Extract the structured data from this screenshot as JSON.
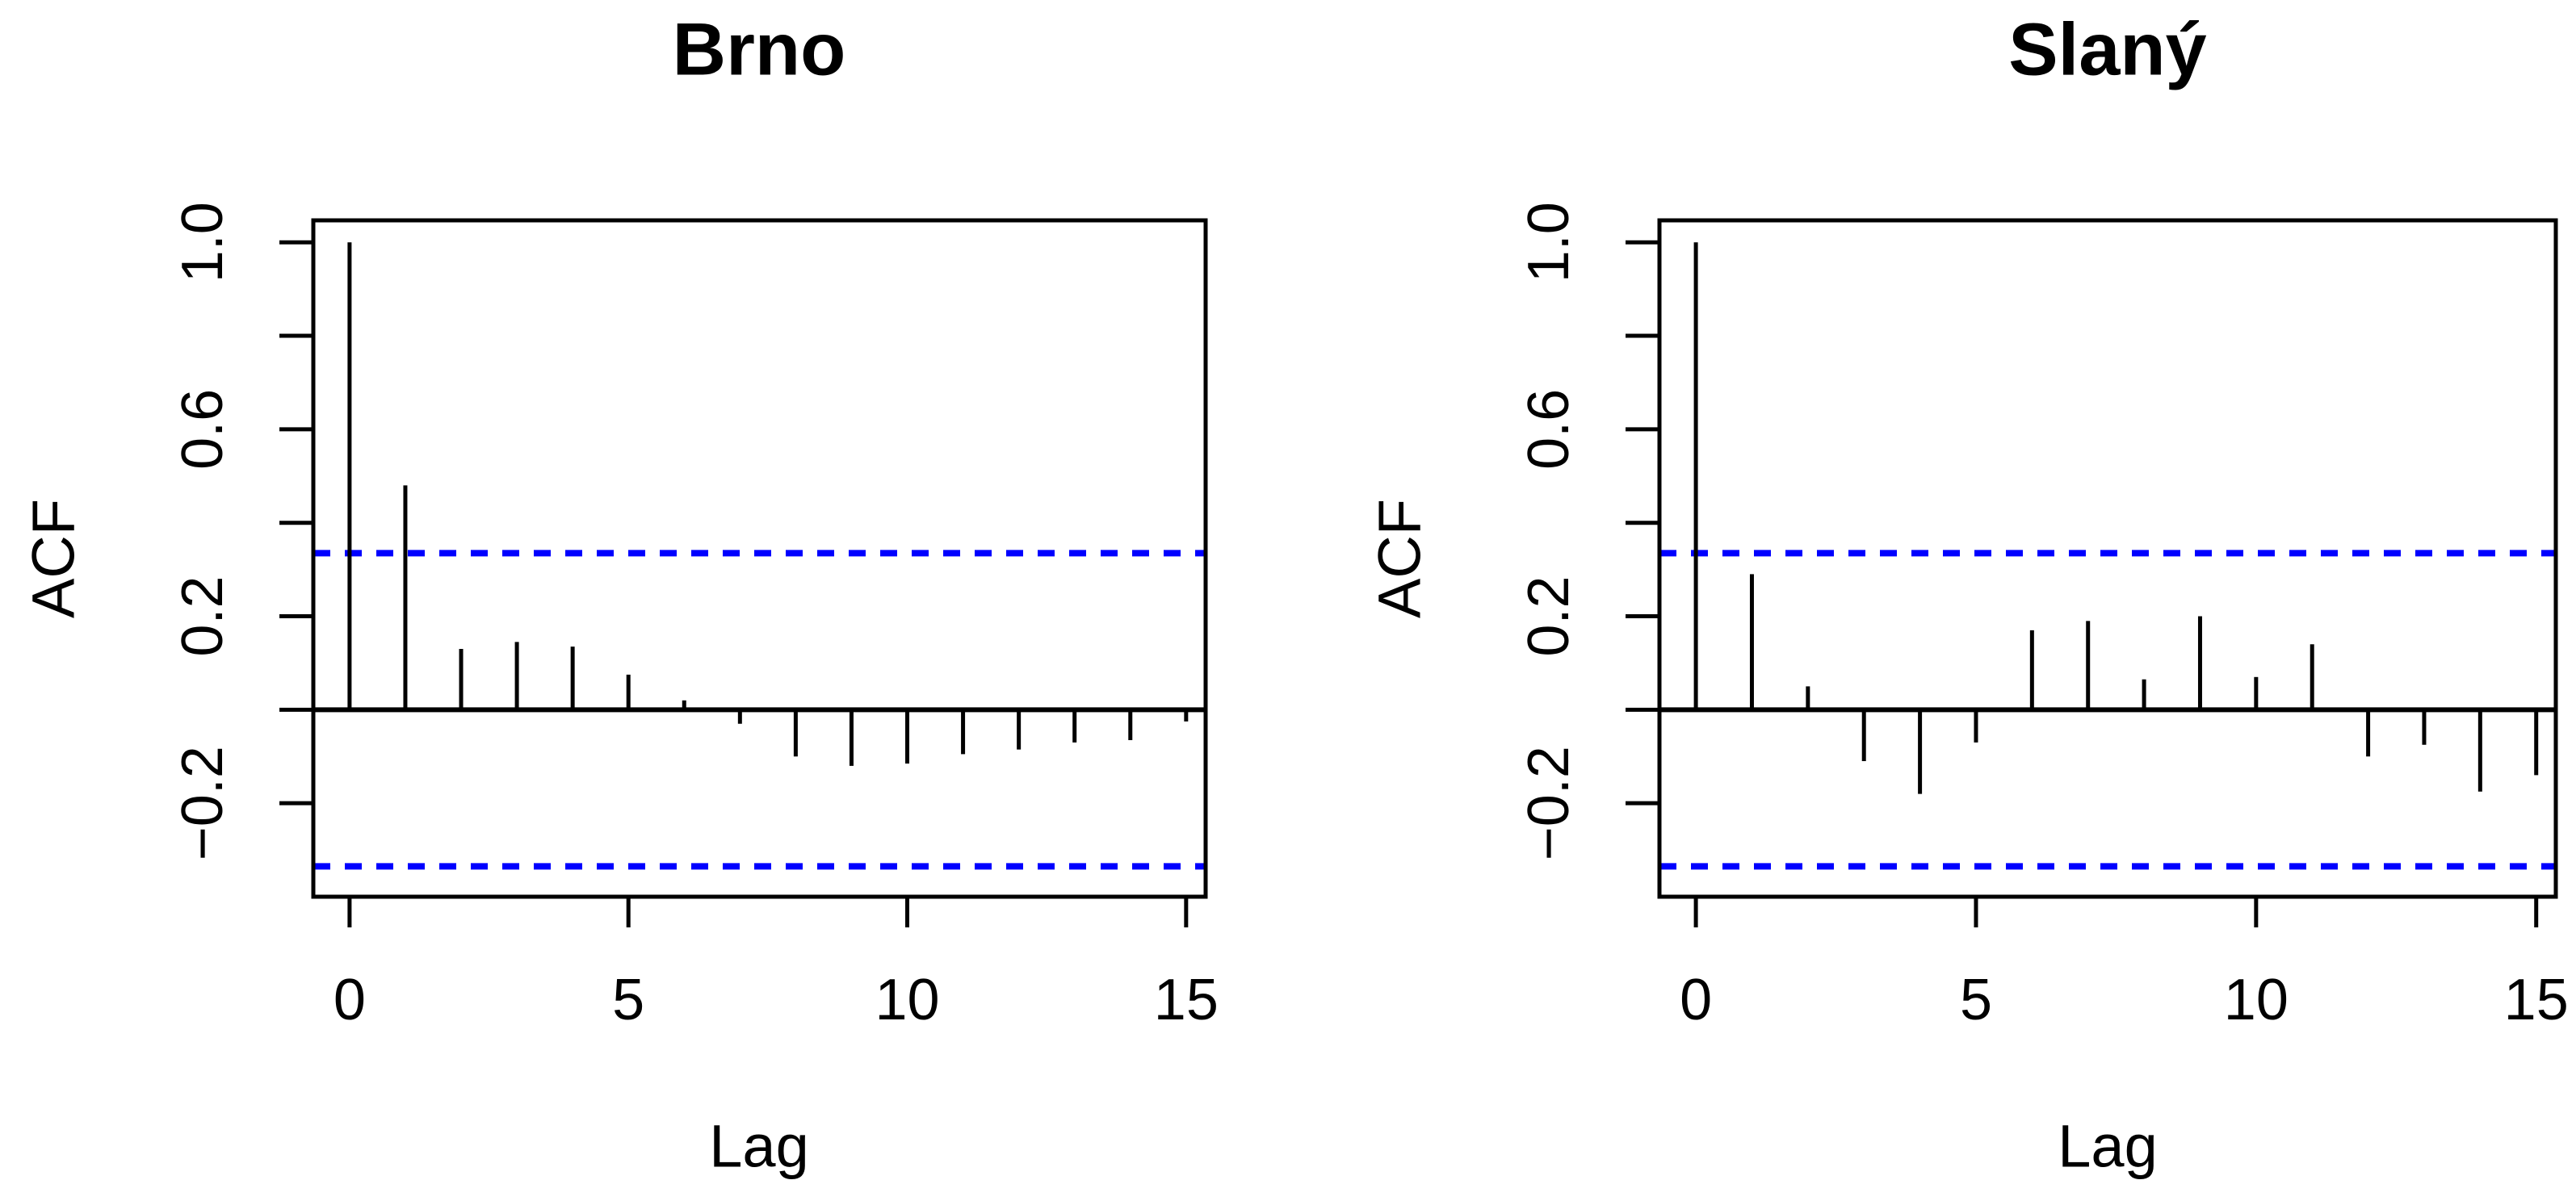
{
  "figure": {
    "background": "#ffffff",
    "axis_color": "#000000",
    "bar_color": "#000000",
    "confidence_line_color": "#0000ff"
  },
  "chart_data": [
    {
      "type": "bar",
      "title": "Brno",
      "xlabel": "Lag",
      "ylabel": "ACF",
      "x": [
        0,
        1,
        2,
        3,
        4,
        5,
        6,
        7,
        8,
        9,
        10,
        11,
        12,
        13,
        14,
        15
      ],
      "values": [
        1.0,
        0.48,
        0.13,
        0.145,
        0.135,
        0.075,
        0.02,
        -0.03,
        -0.1,
        -0.12,
        -0.115,
        -0.095,
        -0.085,
        -0.07,
        -0.065,
        -0.025
      ],
      "confidence_bounds": [
        0.335,
        -0.335
      ],
      "conf_line_style": "dashed",
      "conf_line_color": "#0000ff",
      "bar_color": "#000000",
      "xticks": [
        0,
        5,
        10,
        15
      ],
      "xtick_labels": [
        "0",
        "5",
        "10",
        "15"
      ],
      "yticks": [
        -0.2,
        0,
        0.2,
        0.4,
        0.6,
        0.8,
        1.0
      ],
      "ytick_labels": [
        "−0.2",
        "",
        "0.2",
        "",
        "0.6",
        "",
        "1.0"
      ],
      "xlim": [
        -0.65,
        15.35
      ],
      "ylim": [
        -0.4,
        1.047
      ],
      "grid": false,
      "legend": null
    },
    {
      "type": "bar",
      "title": "Slaný",
      "xlabel": "Lag",
      "ylabel": "ACF",
      "x": [
        0,
        1,
        2,
        3,
        4,
        5,
        6,
        7,
        8,
        9,
        10,
        11,
        12,
        13,
        14,
        15
      ],
      "values": [
        1.0,
        0.29,
        0.05,
        -0.11,
        -0.18,
        -0.07,
        0.17,
        0.19,
        0.065,
        0.2,
        0.07,
        0.14,
        -0.1,
        -0.075,
        -0.175,
        -0.14
      ],
      "confidence_bounds": [
        0.335,
        -0.335
      ],
      "conf_line_style": "dashed",
      "conf_line_color": "#0000ff",
      "bar_color": "#000000",
      "xticks": [
        0,
        5,
        10,
        15
      ],
      "xtick_labels": [
        "0",
        "5",
        "10",
        "15"
      ],
      "yticks": [
        -0.2,
        0,
        0.2,
        0.4,
        0.6,
        0.8,
        1.0
      ],
      "ytick_labels": [
        "−0.2",
        "",
        "0.2",
        "",
        "0.6",
        "",
        "1.0"
      ],
      "xlim": [
        -0.65,
        15.35
      ],
      "ylim": [
        -0.4,
        1.047
      ],
      "grid": false,
      "legend": null
    }
  ]
}
